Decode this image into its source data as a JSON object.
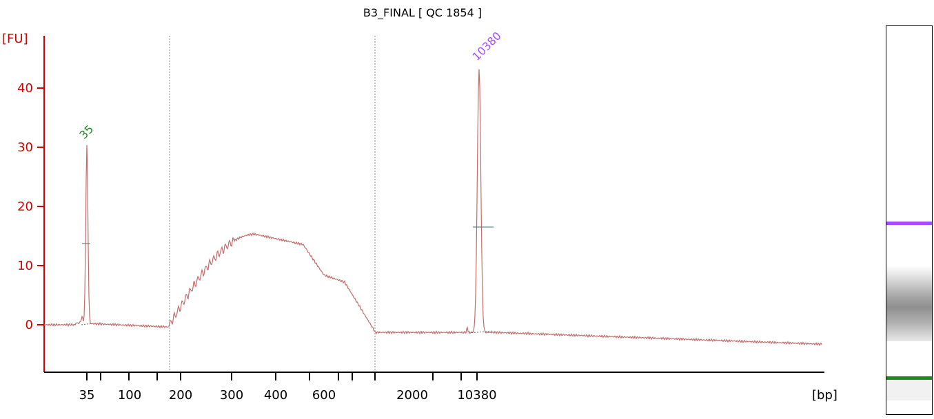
{
  "chart_data": {
    "type": "line",
    "title": "B3_FINAL  [ QC 1854 ]",
    "ylabel": "[FU]",
    "xlabel": "[bp]",
    "ylim": [
      -8,
      48
    ],
    "y_ticks": [
      0,
      10,
      20,
      30,
      40
    ],
    "x_tick_labels": [
      "35",
      "100",
      "200",
      "300",
      "400",
      "600",
      "2000",
      "10380"
    ],
    "peaks": [
      {
        "label": "35",
        "size_bp": 35,
        "height_fu": 30,
        "color": "#1a8a1a"
      },
      {
        "label": "10380",
        "size_bp": 10380,
        "height_fu": 44,
        "color": "#a64dff"
      }
    ],
    "smear_region": {
      "start_bp": 200,
      "end_bp": 1000,
      "max_fu": 15.3,
      "max_at_bp": 400
    },
    "baseline_end_fu": -3.3,
    "colors": {
      "axis": "#d40000",
      "trace": "#c26b6b",
      "lower_marker": "#1a8a1a",
      "upper_marker": "#a64dff"
    }
  },
  "gel_lane": {
    "bands": [
      {
        "name": "upper-marker",
        "color": "#a64dff"
      },
      {
        "name": "lower-marker",
        "color": "#1a8a1a"
      }
    ]
  }
}
